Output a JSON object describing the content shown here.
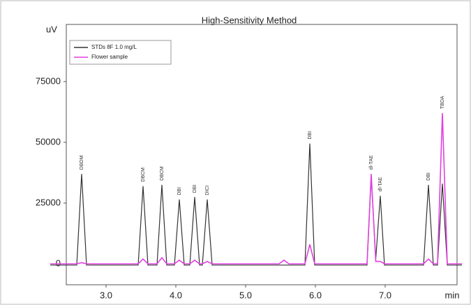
{
  "chart_data": {
    "type": "line",
    "title": "High-Sensitivity Method",
    "ylabel": "uV",
    "xlabel": "min",
    "x": [
      2.2,
      2.58,
      2.65,
      2.72,
      3.46,
      3.53,
      3.6,
      3.73,
      3.8,
      3.87,
      3.98,
      4.05,
      4.12,
      4.2,
      4.27,
      4.34,
      4.38,
      4.45,
      4.52,
      5.48,
      5.55,
      5.62,
      5.85,
      5.92,
      5.99,
      6.74,
      6.8,
      6.865,
      6.93,
      6.99,
      7.55,
      7.62,
      7.69,
      7.75,
      7.82,
      7.89,
      8.1
    ],
    "series": [
      {
        "name": "STDs 8F 1.0 mg/L",
        "color": "#333333",
        "values": [
          -500,
          -500,
          37000,
          -500,
          -500,
          32000,
          -500,
          -500,
          32500,
          -500,
          -500,
          26500,
          -500,
          -500,
          27500,
          -500,
          -500,
          26500,
          -500,
          -500,
          -500,
          -500,
          -500,
          49500,
          -500,
          -500,
          36000,
          2000,
          28000,
          -500,
          -500,
          32500,
          -500,
          -500,
          33000,
          -500,
          -500
        ]
      },
      {
        "name": "Flower sample",
        "color": "#e040e0",
        "values": [
          0,
          0,
          500,
          0,
          0,
          2000,
          0,
          0,
          2500,
          0,
          0,
          1500,
          0,
          0,
          1500,
          0,
          0,
          1000,
          0,
          0,
          1500,
          0,
          0,
          8000,
          0,
          0,
          37000,
          1000,
          1000,
          0,
          0,
          2000,
          0,
          0,
          62000,
          0,
          0
        ]
      }
    ],
    "annotations": [
      {
        "text": "DBDM",
        "x": 2.65,
        "y": 37000
      },
      {
        "text": "DBCM",
        "x": 3.53,
        "y": 32000
      },
      {
        "text": "DBCM",
        "x": 3.8,
        "y": 32500
      },
      {
        "text": "DBI",
        "x": 4.05,
        "y": 26500
      },
      {
        "text": "DBI",
        "x": 4.27,
        "y": 27500
      },
      {
        "text": "DICI",
        "x": 4.45,
        "y": 26500
      },
      {
        "text": "DBI",
        "x": 5.92,
        "y": 49500
      },
      {
        "text": "dl-TAE",
        "x": 6.8,
        "y": 37000
      },
      {
        "text": "dl-TAE",
        "x": 6.93,
        "y": 28000
      },
      {
        "text": "DBI",
        "x": 7.62,
        "y": 32500
      },
      {
        "text": "TBDA",
        "x": 7.82,
        "y": 62000
      }
    ],
    "xlim": [
      2.43,
      8.03
    ],
    "ylim": [
      -8600,
      98500
    ],
    "xticks": [
      {
        "value": 3,
        "label": "3.0"
      },
      {
        "value": 4,
        "label": "4.0"
      },
      {
        "value": 5,
        "label": "5.0"
      },
      {
        "value": 6,
        "label": "6.0"
      },
      {
        "value": 7,
        "label": "7.0"
      }
    ],
    "yticks": [
      0,
      25000,
      50000,
      75000
    ],
    "grid": false
  }
}
